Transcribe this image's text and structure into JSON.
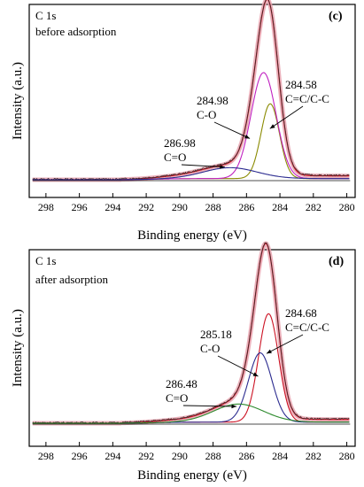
{
  "colors": {
    "frame": "#000000",
    "envelope": "#e8a5b0",
    "raw": "#3a2a2a",
    "fit": "#cc1122",
    "cc": "#8a8a00",
    "co": "#c020c0",
    "co2": "#2b2b8f",
    "baseline": "#101010",
    "green": "#2e8b2e"
  },
  "chart_data": [
    {
      "type": "line",
      "title": "C 1s",
      "subtitle": "before adsorption",
      "panel": "(c)",
      "xlabel": "Binding energy (eV)",
      "ylabel": "Intensity (a.u.)",
      "xlim": [
        299,
        279.5
      ],
      "x_reversed": true,
      "xticks": [
        298,
        296,
        294,
        292,
        290,
        288,
        286,
        284,
        282,
        280
      ],
      "y_ticks_shown": false,
      "components": [
        {
          "center": 284.58,
          "height": 0.48,
          "width": 0.55,
          "color_key": "cc"
        },
        {
          "center": 284.98,
          "height": 0.68,
          "width": 0.75,
          "color_key": "co"
        },
        {
          "center": 286.98,
          "height": 0.07,
          "width": 1.6,
          "color_key": "co2"
        }
      ],
      "annotations": [
        {
          "text1": "284.58",
          "text2": "C=C/C-C",
          "target_x": 284.6
        },
        {
          "text1": "284.98",
          "text2": "C-O",
          "target_x": 285.8
        },
        {
          "text1": "286.98",
          "text2": "C=O",
          "target_x": 287.3
        }
      ]
    },
    {
      "type": "line",
      "title": "C 1s",
      "subtitle": "after adsorption",
      "panel": "(d)",
      "xlabel": "Binding energy (eV)",
      "ylabel": "Intensity (a.u.)",
      "xlim": [
        299,
        279.5
      ],
      "x_reversed": true,
      "xticks": [
        298,
        296,
        294,
        292,
        290,
        288,
        286,
        284,
        282,
        280
      ],
      "y_ticks_shown": false,
      "components": [
        {
          "center": 284.68,
          "height": 0.72,
          "width": 0.6,
          "color_key": "fit"
        },
        {
          "center": 285.18,
          "height": 0.46,
          "width": 0.7,
          "color_key": "co2"
        },
        {
          "center": 286.48,
          "height": 0.12,
          "width": 1.5,
          "color_key": "green"
        }
      ],
      "annotations": [
        {
          "text1": "284.68",
          "text2": "C=C/C-C",
          "target_x": 284.8
        },
        {
          "text1": "285.18",
          "text2": "C-O",
          "target_x": 285.3
        },
        {
          "text1": "286.48",
          "text2": "C=O",
          "target_x": 286.6
        }
      ]
    }
  ]
}
